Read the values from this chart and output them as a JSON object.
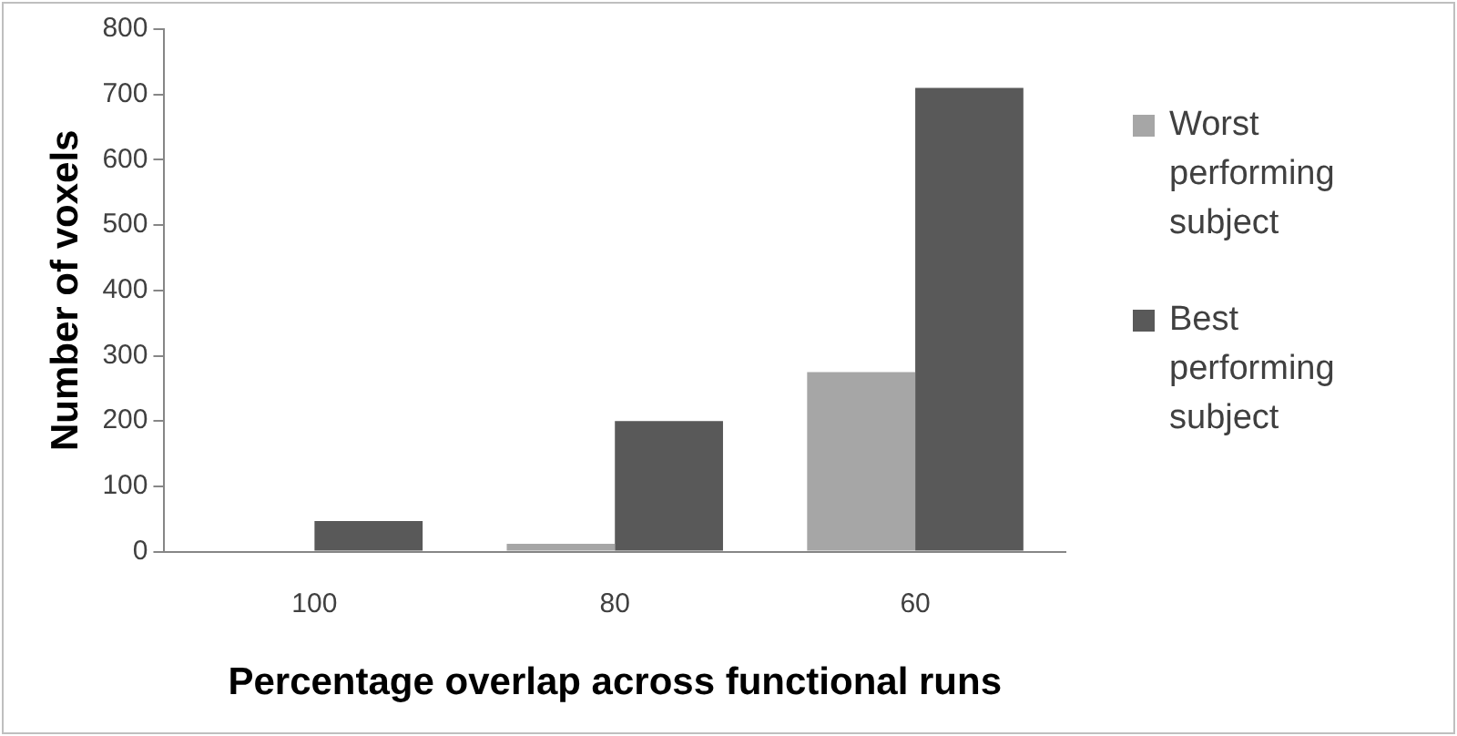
{
  "chart_data": {
    "type": "bar",
    "xlabel": "Percentage overlap across functional runs",
    "ylabel": "Number of voxels",
    "categories": [
      "100",
      "80",
      "60"
    ],
    "series": [
      {
        "name": "Worst performing subject",
        "color": "#a6a6a6",
        "values": [
          0,
          12,
          275
        ]
      },
      {
        "name": "Best performing subject",
        "color": "#595959",
        "values": [
          47,
          200,
          710
        ]
      }
    ],
    "ylim": [
      0,
      800
    ],
    "yticks": [
      0,
      100,
      200,
      300,
      400,
      500,
      600,
      700,
      800
    ],
    "grid": false,
    "legend": "right"
  }
}
